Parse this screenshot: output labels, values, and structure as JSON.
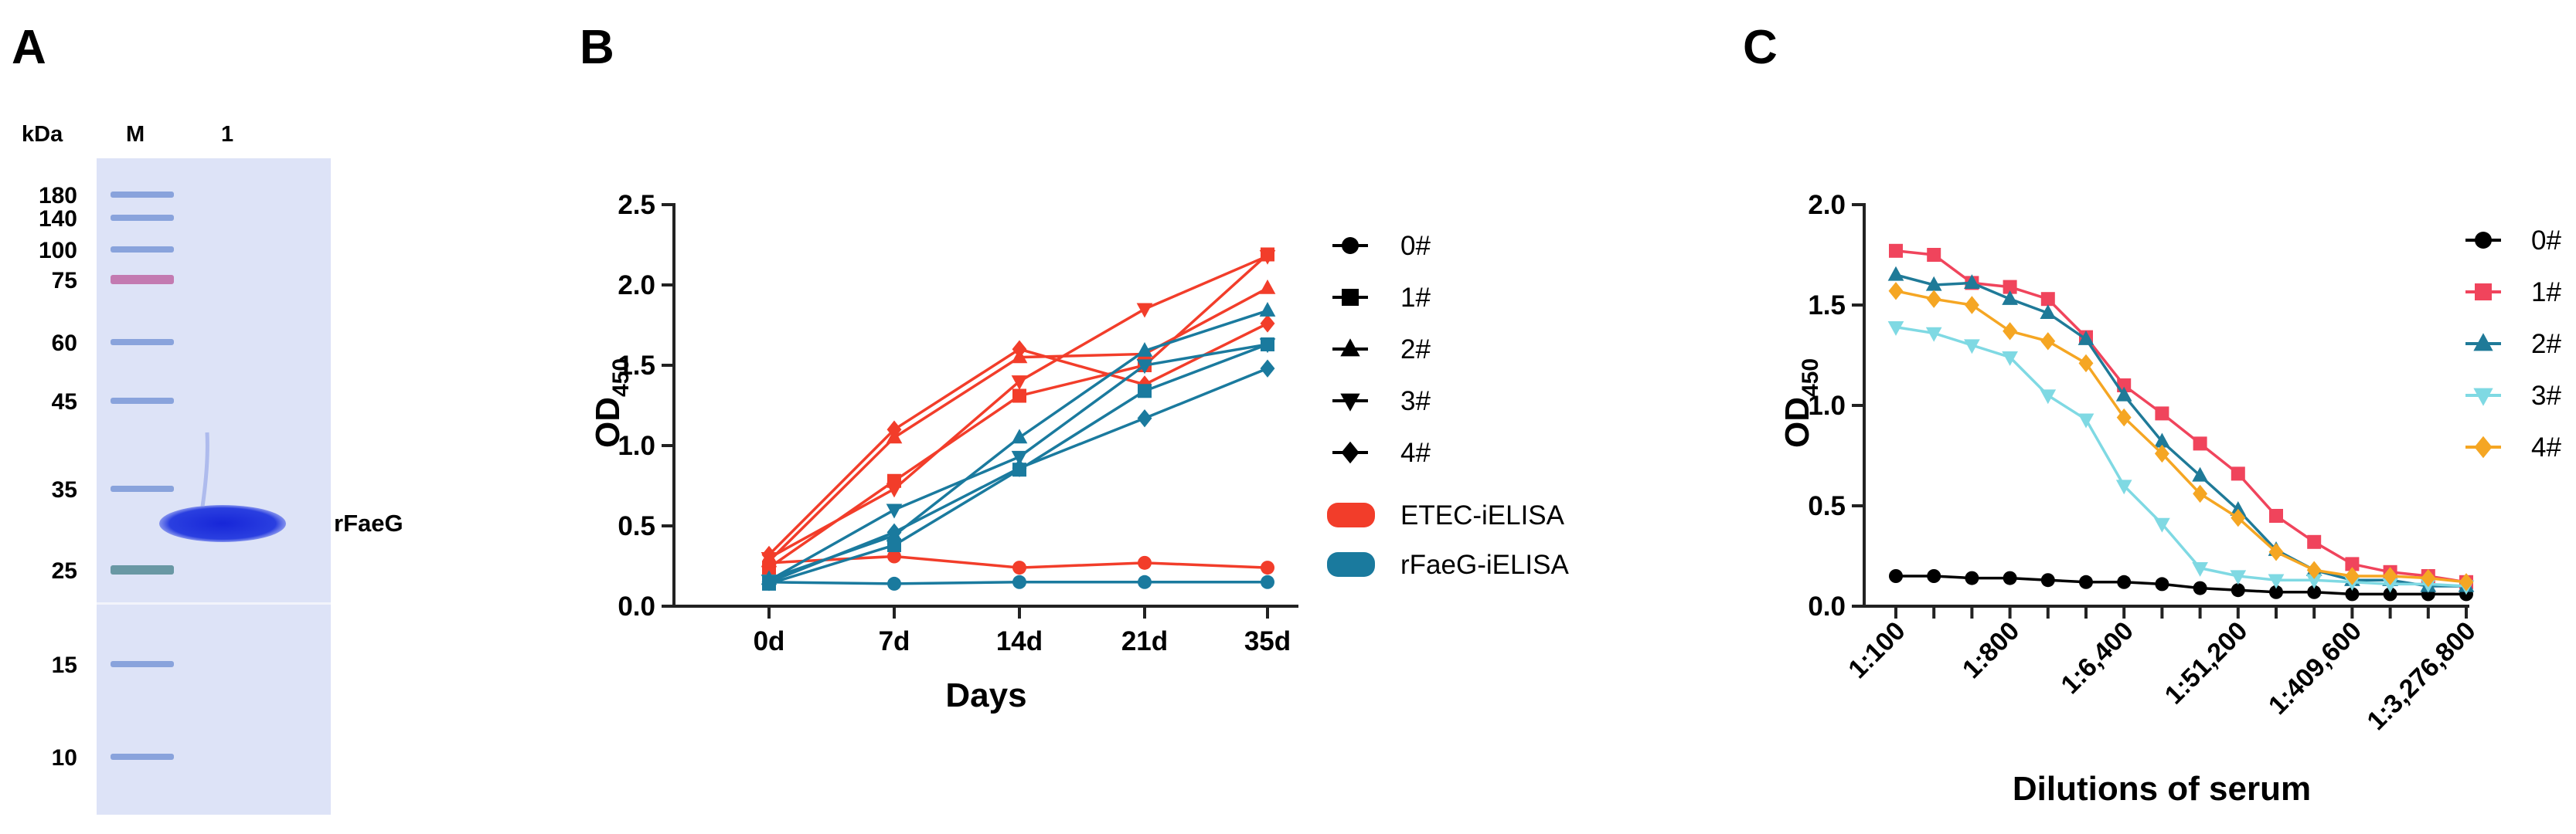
{
  "panels": {
    "a": "A",
    "b": "B",
    "c": "C"
  },
  "gel": {
    "unit_label": "kDa",
    "lane_labels": [
      "M",
      "1"
    ],
    "markers": [
      "180",
      "140",
      "100",
      "75",
      "60",
      "45",
      "35",
      "25",
      "15",
      "10"
    ],
    "band_label": "rFaeG",
    "colors": {
      "gel": "#dde3f7",
      "marker": "#7f9bd8",
      "pink": "#c06ea8",
      "teal": "#5c8f9a",
      "band": "#1f2fd6"
    }
  },
  "chart_data": [
    {
      "panel": "B",
      "type": "line",
      "xlabel": "Days",
      "ylabel": "OD",
      "ylabel_sub": "450",
      "categories": [
        "0d",
        "7d",
        "14d",
        "21d",
        "35d"
      ],
      "ylim": [
        0,
        2.5
      ],
      "yticks": [
        "0.0",
        "0.5",
        "1.0",
        "1.5",
        "2.0",
        "2.5"
      ],
      "legend": {
        "markers": [
          {
            "name": "0#",
            "marker": "circle"
          },
          {
            "name": "1#",
            "marker": "square"
          },
          {
            "name": "2#",
            "marker": "triangle-up"
          },
          {
            "name": "3#",
            "marker": "triangle-down"
          },
          {
            "name": "4#",
            "marker": "diamond"
          }
        ],
        "groups": [
          {
            "name": "ETEC-iELISA",
            "color": "#f23d2a"
          },
          {
            "name": "rFaeG-iELISA",
            "color": "#1a7a9e"
          }
        ]
      },
      "series": [
        {
          "name": "0#",
          "group": "ETEC-iELISA",
          "marker": "circle",
          "values": [
            0.27,
            0.31,
            0.24,
            0.27,
            0.24
          ]
        },
        {
          "name": "1#",
          "group": "ETEC-iELISA",
          "marker": "square",
          "values": [
            0.24,
            0.78,
            1.31,
            1.5,
            2.19
          ]
        },
        {
          "name": "2#",
          "group": "ETEC-iELISA",
          "marker": "triangle-up",
          "values": [
            0.28,
            1.05,
            1.55,
            1.57,
            1.98
          ]
        },
        {
          "name": "3#",
          "group": "ETEC-iELISA",
          "marker": "triangle-down",
          "values": [
            0.3,
            0.73,
            1.4,
            1.85,
            2.18
          ]
        },
        {
          "name": "4#",
          "group": "ETEC-iELISA",
          "marker": "diamond",
          "values": [
            0.32,
            1.1,
            1.6,
            1.38,
            1.76
          ]
        },
        {
          "name": "0#",
          "group": "rFaeG-iELISA",
          "marker": "circle",
          "values": [
            0.15,
            0.14,
            0.15,
            0.15,
            0.15
          ]
        },
        {
          "name": "1#",
          "group": "rFaeG-iELISA",
          "marker": "square",
          "values": [
            0.14,
            0.38,
            0.85,
            1.34,
            1.63
          ]
        },
        {
          "name": "2#",
          "group": "rFaeG-iELISA",
          "marker": "triangle-up",
          "values": [
            0.17,
            0.44,
            1.05,
            1.59,
            1.84
          ]
        },
        {
          "name": "3#",
          "group": "rFaeG-iELISA",
          "marker": "triangle-down",
          "values": [
            0.16,
            0.6,
            0.93,
            1.5,
            1.63
          ]
        },
        {
          "name": "4#",
          "group": "rFaeG-iELISA",
          "marker": "diamond",
          "values": [
            0.15,
            0.46,
            0.86,
            1.17,
            1.48
          ]
        }
      ]
    },
    {
      "panel": "C",
      "type": "line",
      "xlabel": "Dilutions of serum",
      "ylabel": "OD",
      "ylabel_sub": "450",
      "x_points": 16,
      "xtick_labels": [
        "1:100",
        "1:800",
        "1:6,400",
        "1:51,200",
        "1:409,600",
        "1:3,276,800"
      ],
      "xtick_positions": [
        0,
        3,
        6,
        9,
        12,
        15
      ],
      "ylim": [
        0,
        2.0
      ],
      "yticks": [
        "0.0",
        "0.5",
        "1.0",
        "1.5",
        "2.0"
      ],
      "series": [
        {
          "name": "0#",
          "marker": "circle",
          "color": "#000000",
          "values": [
            0.15,
            0.15,
            0.14,
            0.14,
            0.13,
            0.12,
            0.12,
            0.11,
            0.09,
            0.08,
            0.07,
            0.07,
            0.06,
            0.06,
            0.06,
            0.06
          ]
        },
        {
          "name": "1#",
          "marker": "square",
          "color": "#f0445c",
          "values": [
            1.77,
            1.75,
            1.61,
            1.59,
            1.53,
            1.34,
            1.1,
            0.96,
            0.81,
            0.66,
            0.45,
            0.32,
            0.21,
            0.17,
            0.15,
            0.12
          ]
        },
        {
          "name": "2#",
          "marker": "triangle-up",
          "color": "#1f7a98",
          "values": [
            1.65,
            1.6,
            1.61,
            1.53,
            1.46,
            1.33,
            1.05,
            0.82,
            0.65,
            0.48,
            0.28,
            0.18,
            0.13,
            0.13,
            0.1,
            0.1
          ]
        },
        {
          "name": "3#",
          "marker": "triangle-down",
          "color": "#7fd9e3",
          "values": [
            1.39,
            1.36,
            1.3,
            1.24,
            1.05,
            0.93,
            0.6,
            0.41,
            0.19,
            0.15,
            0.13,
            0.13,
            0.12,
            0.11,
            0.11,
            0.1
          ]
        },
        {
          "name": "4#",
          "marker": "diamond",
          "color": "#f5a623",
          "values": [
            1.57,
            1.53,
            1.5,
            1.37,
            1.32,
            1.21,
            0.94,
            0.76,
            0.56,
            0.44,
            0.27,
            0.18,
            0.15,
            0.15,
            0.14,
            0.12
          ]
        }
      ]
    }
  ]
}
